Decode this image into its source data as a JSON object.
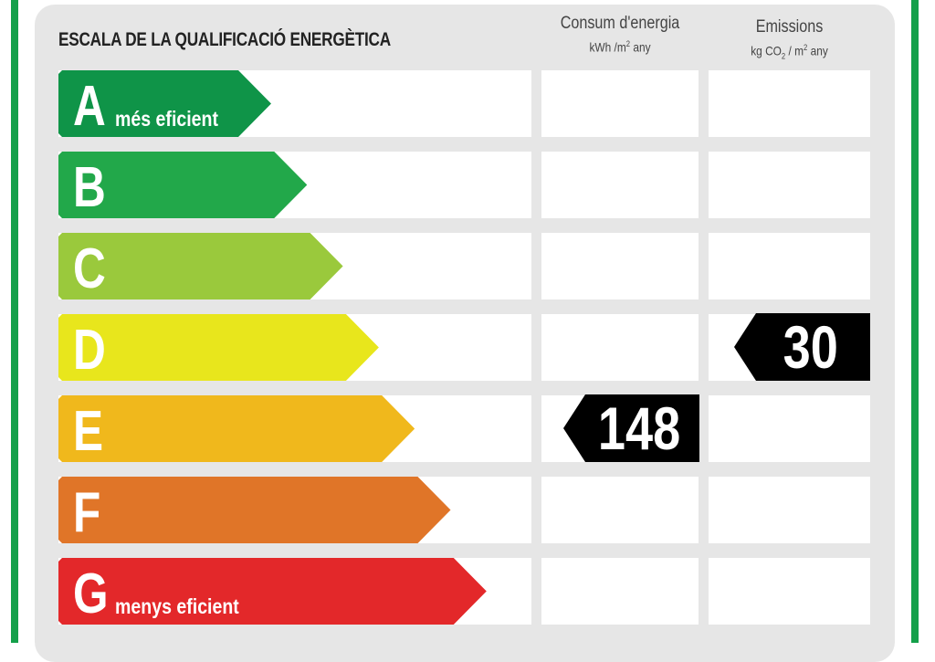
{
  "title": "ESCALA DE LA QUALIFICACIÓ ENERGÈTICA",
  "columns": {
    "consum": {
      "title": "Consum d'energia",
      "unit_pre": "kWh /m",
      "unit_sup": "2",
      "unit_post": " any"
    },
    "emissions": {
      "title": "Emissions",
      "unit_a": "kg CO",
      "unit_sub": "2",
      "unit_b": " / m",
      "unit_sup": "2",
      "unit_post": " any"
    }
  },
  "classes": [
    {
      "letter": "A",
      "label": "més eficient",
      "color": "#0f9448"
    },
    {
      "letter": "B",
      "label": "",
      "color": "#22a84a"
    },
    {
      "letter": "C",
      "label": "",
      "color": "#9ac93c"
    },
    {
      "letter": "D",
      "label": "",
      "color": "#e8e61c"
    },
    {
      "letter": "E",
      "label": "",
      "color": "#f0b81c"
    },
    {
      "letter": "F",
      "label": "",
      "color": "#e07528"
    },
    {
      "letter": "G",
      "label": "menys eficient",
      "color": "#e3282a"
    }
  ],
  "consum_value": {
    "value": "148",
    "class": "E"
  },
  "emissions_value": {
    "value": "30",
    "class": "D"
  }
}
